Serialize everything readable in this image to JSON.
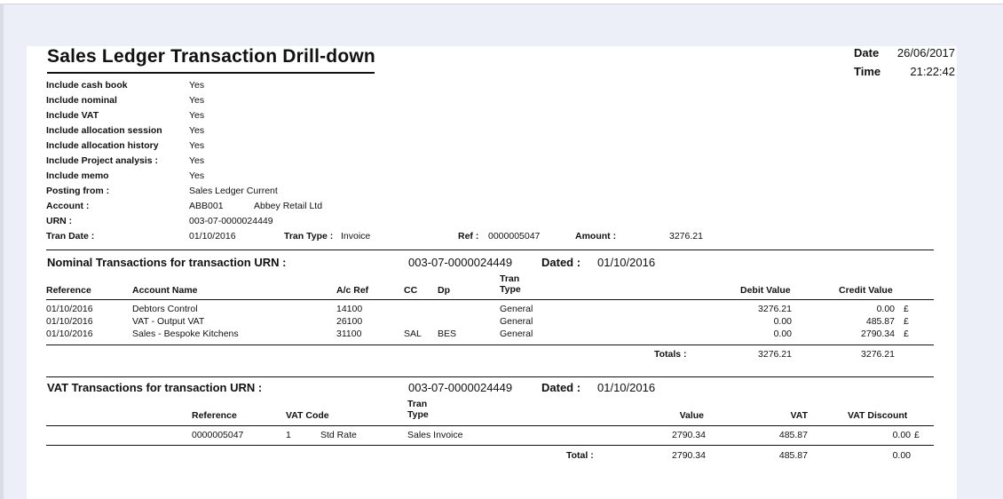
{
  "report": {
    "title": "Sales Ledger Transaction Drill-down",
    "date_label": "Date",
    "date_value": "26/06/2017",
    "time_label": "Time",
    "time_value": "21:22:42"
  },
  "criteria": [
    {
      "label": "Include cash book",
      "value": "Yes"
    },
    {
      "label": "Include nominal",
      "value": "Yes"
    },
    {
      "label": "Include VAT",
      "value": "Yes"
    },
    {
      "label": "Include allocation session",
      "value": "Yes"
    },
    {
      "label": "Include allocation history",
      "value": "Yes"
    },
    {
      "label": "Include Project analysis :",
      "value": "Yes"
    },
    {
      "label": "Include memo",
      "value": "Yes"
    },
    {
      "label": "Posting from :",
      "value": "Sales Ledger Current"
    }
  ],
  "account": {
    "label": "Account :",
    "code": "ABB001",
    "name": "Abbey Retail Ltd"
  },
  "urn": {
    "label": "URN :",
    "value": "003-07-0000024449"
  },
  "tran": {
    "date_label": "Tran Date :",
    "date_value": "01/10/2016",
    "type_label": "Tran Type :",
    "type_value": "Invoice",
    "ref_label": "Ref :",
    "ref_value": "0000005047",
    "amount_label": "Amount :",
    "amount_value": "3276.21"
  },
  "nominal": {
    "title": "Nominal Transactions for transaction URN :",
    "urn": "003-07-0000024449",
    "dated_label": "Dated :",
    "dated_value": "01/10/2016",
    "headers": {
      "reference": "Reference",
      "account_name": "Account Name",
      "ac_ref": "A/c Ref",
      "cc": "CC",
      "dp": "Dp",
      "tran_type_1": "Tran",
      "tran_type_2": "Type",
      "debit": "Debit Value",
      "credit": "Credit Value"
    },
    "rows": [
      {
        "reference": "01/10/2016",
        "account_name": "Debtors Control",
        "ac_ref": "14100",
        "cc": "",
        "dp": "",
        "tran_type": "General",
        "debit": "3276.21",
        "credit": "0.00",
        "currency": "£"
      },
      {
        "reference": "01/10/2016",
        "account_name": "VAT - Output VAT",
        "ac_ref": "26100",
        "cc": "",
        "dp": "",
        "tran_type": "General",
        "debit": "0.00",
        "credit": "485.87",
        "currency": "£"
      },
      {
        "reference": "01/10/2016",
        "account_name": "Sales - Bespoke Kitchens",
        "ac_ref": "31100",
        "cc": "SAL",
        "dp": "BES",
        "tran_type": "General",
        "debit": "0.00",
        "credit": "2790.34",
        "currency": "£"
      }
    ],
    "totals_label": "Totals :",
    "total_debit": "3276.21",
    "total_credit": "3276.21"
  },
  "vat": {
    "title": "VAT Transactions for transaction URN :",
    "urn": "003-07-0000024449",
    "dated_label": "Dated :",
    "dated_value": "01/10/2016",
    "headers": {
      "reference": "Reference",
      "vat_code": "VAT Code",
      "tran_type_1": "Tran",
      "tran_type_2": "Type",
      "value": "Value",
      "vat": "VAT",
      "vat_discount": "VAT Discount"
    },
    "rows": [
      {
        "reference": "0000005047",
        "code": "1",
        "rate": "Std Rate",
        "tran_type": "Sales Invoice",
        "value": "2790.34",
        "vat": "485.87",
        "vat_discount": "0.00",
        "currency": "£"
      }
    ],
    "total_label": "Total :",
    "total_value": "2790.34",
    "total_vat": "485.87",
    "total_discount": "0.00"
  }
}
